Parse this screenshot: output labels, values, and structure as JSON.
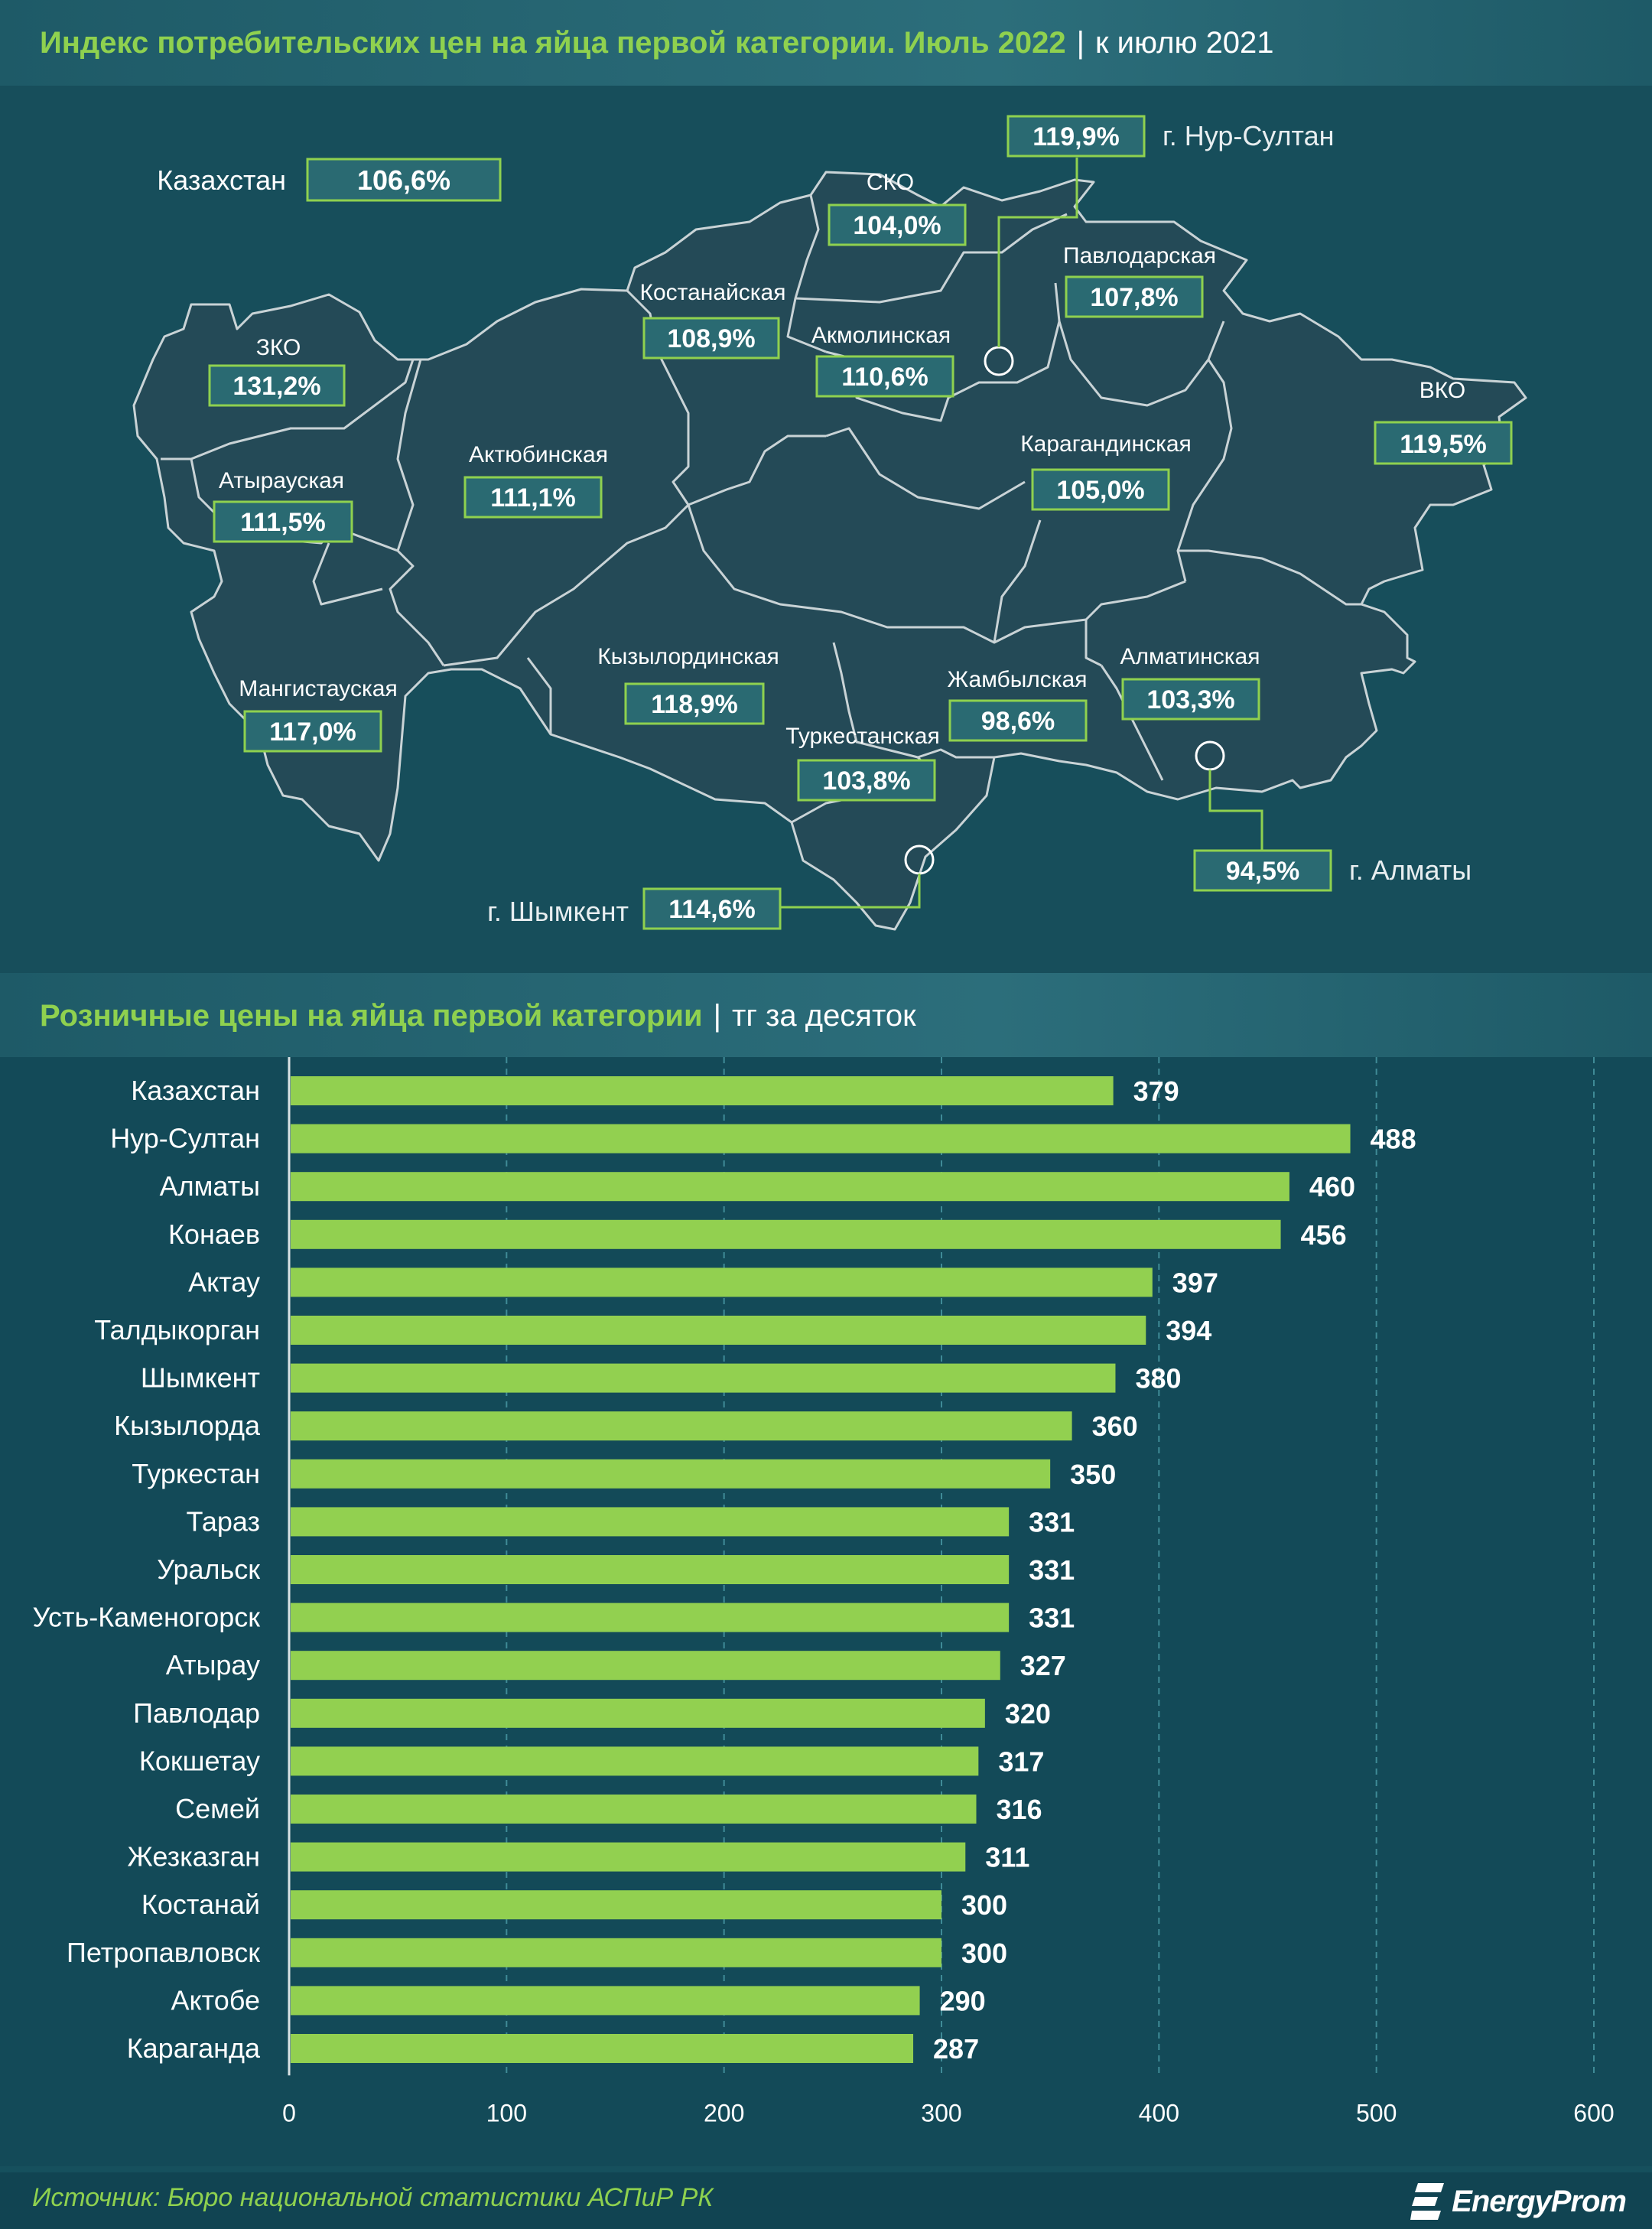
{
  "map_section": {
    "title": "Индекс потребительских цен на яйца первой категории. Июль 2022",
    "subtitle": "к июлю 2021",
    "kazakhstan": {
      "label": "Казахстан",
      "value": "106,6%"
    },
    "regions": [
      {
        "id": "zko",
        "name": "ЗКО",
        "value": "131,2%"
      },
      {
        "id": "atyrau",
        "name": "Атырауская",
        "value": "111,5%"
      },
      {
        "id": "mangystau",
        "name": "Мангистауская",
        "value": "117,0%"
      },
      {
        "id": "aktobe",
        "name": "Актюбинская",
        "value": "111,1%"
      },
      {
        "id": "kostanay",
        "name": "Костанайская",
        "value": "108,9%"
      },
      {
        "id": "sko",
        "name": "СКО",
        "value": "104,0%"
      },
      {
        "id": "akmola",
        "name": "Акмолинская",
        "value": "110,6%"
      },
      {
        "id": "pavlodar",
        "name": "Павлодарская",
        "value": "107,8%"
      },
      {
        "id": "vko",
        "name": "ВКО",
        "value": "119,5%"
      },
      {
        "id": "karaganda",
        "name": "Карагандинская",
        "value": "105,0%"
      },
      {
        "id": "kyzylorda",
        "name": "Кызылординская",
        "value": "118,9%"
      },
      {
        "id": "turkestan",
        "name": "Туркестанская",
        "value": "103,8%"
      },
      {
        "id": "zhambyl",
        "name": "Жамбылская",
        "value": "98,6%"
      },
      {
        "id": "almaty-reg",
        "name": "Алматинская",
        "value": "103,3%"
      }
    ],
    "cities": [
      {
        "id": "nur-sultan",
        "name": "г. Нур-Султан",
        "value": "119,9%"
      },
      {
        "id": "almaty",
        "name": "г. Алматы",
        "value": "94,5%"
      },
      {
        "id": "shymkent",
        "name": "г. Шымкент",
        "value": "114,6%"
      }
    ]
  },
  "chart_section": {
    "title": "Розничные цены на яйца первой категории",
    "subtitle": "тг за десяток"
  },
  "chart_data": {
    "type": "bar",
    "orientation": "horizontal",
    "title": "Розничные цены на яйца первой категории",
    "subtitle": "тг за десяток",
    "categories": [
      "Казахстан",
      "Нур-Султан",
      "Алматы",
      "Конаев",
      "Актау",
      "Талдыкорган",
      "Шымкент",
      "Кызылорда",
      "Туркестан",
      "Тараз",
      "Уральск",
      "Усть-Каменогорск",
      "Атырау",
      "Павлодар",
      "Кокшетау",
      "Семей",
      "Жезказган",
      "Костанай",
      "Петропавловск",
      "Актобе",
      "Караганда"
    ],
    "values": [
      379,
      488,
      460,
      456,
      397,
      394,
      380,
      360,
      350,
      331,
      331,
      331,
      327,
      320,
      317,
      316,
      311,
      300,
      300,
      290,
      287
    ],
    "xlim": [
      0,
      600
    ],
    "xticks": [
      0,
      100,
      200,
      300,
      400,
      500,
      600
    ],
    "grid": true,
    "bar_color": "#92d050"
  },
  "footer": {
    "source": "Источник: Бюро национальной статистики АСПиР РК",
    "logo": "EnergyProm"
  },
  "colors": {
    "accent_green": "#8fd14f",
    "background": "#16505d",
    "map_fill": "#244a57",
    "label_box": "#2a6a72"
  }
}
